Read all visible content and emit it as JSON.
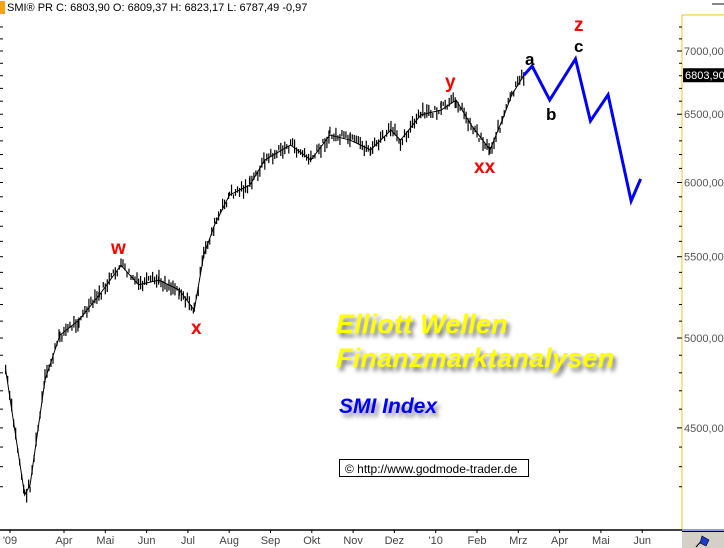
{
  "header": {
    "text": "SMI® PR C: 6803,90 O: 6809,37 H: 6823,17 L: 6787,49 -0,97"
  },
  "overlay": {
    "line1": "Elliott Wellen",
    "line2": "Finanzmarktanalysen",
    "index": "SMI Index",
    "copyright": "© http://www.godmode-trader.de"
  },
  "wave_labels": {
    "w": "w",
    "x": "x",
    "y": "y",
    "xx": "xx",
    "a": "a",
    "b": "b",
    "c": "c",
    "z": "z"
  },
  "current_price_label": "6803,90",
  "icons": {
    "corner": "pencil-flag-icon"
  },
  "colors": {
    "price": "#000000",
    "projection": "#0000ff",
    "wave_red": "#ff0000",
    "axis_line": "#f5c518",
    "yellow_text": "#ffff00"
  },
  "chart_data": {
    "type": "line",
    "scale": "log",
    "ylim": [
      4100,
      7250
    ],
    "y_ticks": [
      4500,
      5000,
      5500,
      6000,
      6500,
      7000
    ],
    "y_tick_labels": [
      "4500,00",
      "5000,00",
      "5500,00",
      "6000,00",
      "6500,00",
      "7000,00"
    ],
    "x_tick_labels": [
      "'09",
      "Apr",
      "Mai",
      "Jun",
      "Jul",
      "Aug",
      "Sep",
      "Okt",
      "Nov",
      "Dez",
      "'10",
      "Feb",
      "Mrz",
      "Apr",
      "Mai",
      "Jun"
    ],
    "grid": false,
    "series": [
      {
        "values": [
          [
            "2009-02-17",
            4818
          ],
          [
            "2009-03-03",
            4159
          ],
          [
            "2009-03-07",
            4209
          ],
          [
            "2009-03-18",
            4760
          ],
          [
            "2009-03-29",
            5017
          ],
          [
            "2009-04-12",
            5106
          ],
          [
            "2009-04-27",
            5258
          ],
          [
            "2009-05-13",
            5446
          ],
          [
            "2009-05-26",
            5322
          ],
          [
            "2009-06-10",
            5351
          ],
          [
            "2009-06-25",
            5289
          ],
          [
            "2009-07-06",
            5166
          ],
          [
            "2009-07-13",
            5510
          ],
          [
            "2009-07-21",
            5709
          ],
          [
            "2009-08-01",
            5913
          ],
          [
            "2009-08-16",
            5982
          ],
          [
            "2009-08-27",
            6160
          ],
          [
            "2009-09-15",
            6270
          ],
          [
            "2009-09-30",
            6160
          ],
          [
            "2009-10-14",
            6343
          ],
          [
            "2009-10-29",
            6305
          ],
          [
            "2009-11-13",
            6234
          ],
          [
            "2009-11-28",
            6380
          ],
          [
            "2009-12-05",
            6305
          ],
          [
            "2009-12-20",
            6494
          ],
          [
            "2010-01-04",
            6532
          ],
          [
            "2010-01-15",
            6609
          ],
          [
            "2010-01-26",
            6419
          ],
          [
            "2010-02-09",
            6234
          ],
          [
            "2010-02-18",
            6456
          ],
          [
            "2010-02-25",
            6648
          ],
          [
            "2010-03-06",
            6803.9
          ]
        ]
      },
      {
        "values": [
          [
            "2010-03-06",
            6803.9
          ],
          [
            "2010-03-12",
            6878
          ],
          [
            "2010-03-25",
            6609
          ],
          [
            "2010-04-13",
            6935
          ],
          [
            "2010-04-24",
            6449
          ],
          [
            "2010-05-07",
            6650
          ],
          [
            "2010-05-24",
            5871
          ],
          [
            "2010-05-31",
            6025
          ]
        ]
      }
    ]
  }
}
